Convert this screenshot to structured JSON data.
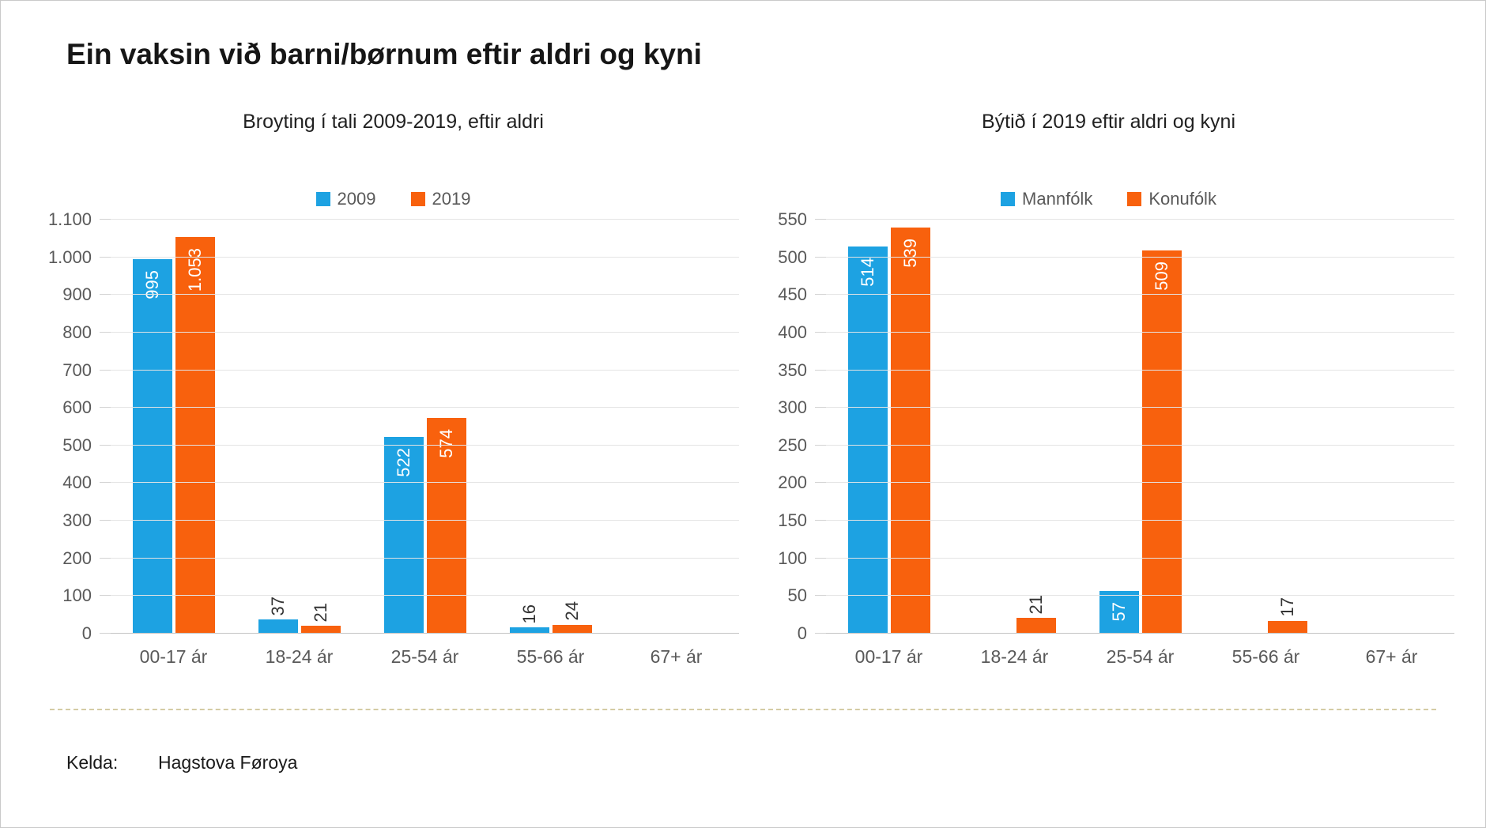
{
  "page": {
    "title": "Ein vaksin við barni/børnum eftir aldri og kyni",
    "source_label": "Kelda:",
    "source_value": "Hagstova Føroya"
  },
  "colors": {
    "series_blue": "#1da2e2",
    "series_orange": "#f8610d",
    "gridline": "#e4e4e4",
    "axis_text": "#595959",
    "separator": "#d4cba4"
  },
  "chart_data": [
    {
      "type": "bar",
      "title": "Broyting í tali 2009-2019, eftir aldri",
      "categories": [
        "00-17 ár",
        "18-24 ár",
        "25-54 ár",
        "55-66 ár",
        "67+ ár"
      ],
      "series": [
        {
          "name": "2009",
          "color": "#1da2e2",
          "values": [
            995,
            37,
            522,
            16,
            0
          ],
          "labels": [
            "995",
            "37",
            "522",
            "16",
            null
          ],
          "inside": [
            true,
            false,
            true,
            false,
            false
          ]
        },
        {
          "name": "2019",
          "color": "#f8610d",
          "values": [
            1053,
            21,
            574,
            24,
            0
          ],
          "labels": [
            "1.053",
            "21",
            "574",
            "24",
            null
          ],
          "inside": [
            true,
            false,
            true,
            false,
            false
          ]
        }
      ],
      "xlabel": "",
      "ylabel": "",
      "ylim": [
        0,
        1100
      ],
      "ytick_step": 100,
      "ytick_labels": [
        "0",
        "100",
        "200",
        "300",
        "400",
        "500",
        "600",
        "700",
        "800",
        "900",
        "1.000",
        "1.100"
      ],
      "legend_position": "top",
      "grid": true
    },
    {
      "type": "bar",
      "title": "Býtið í 2019 eftir aldri og kyni",
      "categories": [
        "00-17 ár",
        "18-24 ár",
        "25-54 ár",
        "55-66 ár",
        "67+ ár"
      ],
      "series": [
        {
          "name": "Mannfólk",
          "color": "#1da2e2",
          "values": [
            514,
            0,
            57,
            0,
            0
          ],
          "labels": [
            "514",
            null,
            "57",
            null,
            null
          ],
          "inside": [
            true,
            false,
            true,
            false,
            false
          ]
        },
        {
          "name": "Konufólk",
          "color": "#f8610d",
          "values": [
            539,
            21,
            509,
            17,
            0
          ],
          "labels": [
            "539",
            "21",
            "509",
            "17",
            null
          ],
          "inside": [
            true,
            false,
            true,
            false,
            false
          ]
        }
      ],
      "xlabel": "",
      "ylabel": "",
      "ylim": [
        0,
        550
      ],
      "ytick_step": 50,
      "ytick_labels": [
        "0",
        "50",
        "100",
        "150",
        "200",
        "250",
        "300",
        "350",
        "400",
        "450",
        "500",
        "550"
      ],
      "legend_position": "top",
      "grid": true
    }
  ]
}
